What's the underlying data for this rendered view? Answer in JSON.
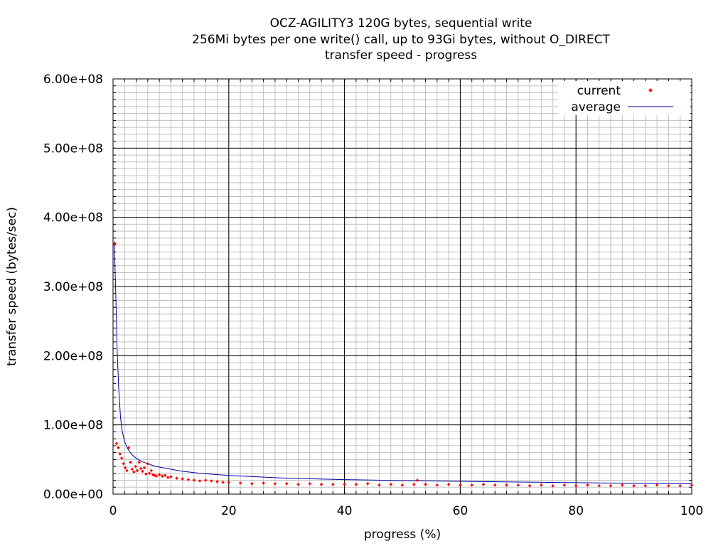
{
  "chart_data": {
    "type": "scatter",
    "title_lines": [
      "OCZ-AGILITY3 120G bytes, sequential write",
      "256Mi bytes per one write() call, up to 93Gi bytes, without O_DIRECT",
      "transfer speed - progress"
    ],
    "xlabel": "progress (%)",
    "ylabel": "transfer speed (bytes/sec)",
    "xlim": [
      0,
      100
    ],
    "ylim": [
      0,
      600000000
    ],
    "x_ticks": [
      0,
      20,
      40,
      60,
      80,
      100
    ],
    "x_tick_labels": [
      "0",
      "20",
      "40",
      "60",
      "80",
      "100"
    ],
    "y_ticks": [
      0,
      100000000,
      200000000,
      300000000,
      400000000,
      500000000,
      600000000
    ],
    "y_tick_labels": [
      "0.00e+00",
      "1.00e+08",
      "2.00e+08",
      "3.00e+08",
      "4.00e+08",
      "5.00e+08",
      "6.00e+08"
    ],
    "grid": true,
    "legend_position": "top-right",
    "series": [
      {
        "name": "current",
        "style": "points",
        "color": "#ff0000",
        "x": [
          0.3,
          0.6,
          0.9,
          1.2,
          1.5,
          1.8,
          2.1,
          2.4,
          2.7,
          3.0,
          3.3,
          3.6,
          3.9,
          4.2,
          4.5,
          4.8,
          5.1,
          5.4,
          5.7,
          6.0,
          6.3,
          6.6,
          6.9,
          7.2,
          7.5,
          8.0,
          8.5,
          9.0,
          9.5,
          10.0,
          11.0,
          12.0,
          13.0,
          14.0,
          15.0,
          16.0,
          17.0,
          18.0,
          19.0,
          20.0,
          22.0,
          24.0,
          26.0,
          28.0,
          30.0,
          32.0,
          34.0,
          36.0,
          38.0,
          40.0,
          42.0,
          44.0,
          46.0,
          48.0,
          50.0,
          52.0,
          52.6,
          54.0,
          56.0,
          58.0,
          60.0,
          62.0,
          64.0,
          66.0,
          68.0,
          70.0,
          72.0,
          74.0,
          76.0,
          78.0,
          80.0,
          82.0,
          84.0,
          86.0,
          88.0,
          90.0,
          92.0,
          94.0,
          96.0,
          98.0,
          100.0
        ],
        "values": [
          362000000,
          73000000,
          67000000,
          58000000,
          52000000,
          44000000,
          38000000,
          34000000,
          67000000,
          46000000,
          36000000,
          32000000,
          40000000,
          34000000,
          46000000,
          37000000,
          33000000,
          38000000,
          29000000,
          44000000,
          30000000,
          34000000,
          28000000,
          27000000,
          26000000,
          28000000,
          26000000,
          27000000,
          24000000,
          25000000,
          23000000,
          22000000,
          21000000,
          20000000,
          19000000,
          20000000,
          19000000,
          18000000,
          17000000,
          17000000,
          16000000,
          15000000,
          16000000,
          15000000,
          15000000,
          14000000,
          15000000,
          14000000,
          14000000,
          14000000,
          14000000,
          15000000,
          13000000,
          14000000,
          13000000,
          14000000,
          20000000,
          14000000,
          13000000,
          14000000,
          13000000,
          13000000,
          14000000,
          13000000,
          13000000,
          13000000,
          12000000,
          13000000,
          12000000,
          13000000,
          12000000,
          13000000,
          12000000,
          12000000,
          13000000,
          12000000,
          12000000,
          13000000,
          12000000,
          12000000,
          13000000
        ]
      },
      {
        "name": "average",
        "style": "line",
        "color": "#0000a0",
        "x": [
          0.2,
          0.3,
          0.5,
          0.7,
          1.0,
          1.3,
          1.6,
          2.0,
          2.5,
          3.0,
          3.5,
          4.0,
          5.0,
          6.0,
          7.0,
          8.0,
          10.0,
          12.0,
          15.0,
          20.0,
          25.0,
          30.0,
          40.0,
          50.0,
          60.0,
          70.0,
          80.0,
          90.0,
          100.0
        ],
        "values": [
          365000000,
          340000000,
          280000000,
          210000000,
          150000000,
          110000000,
          90000000,
          76000000,
          66000000,
          60000000,
          55000000,
          52000000,
          47000000,
          44000000,
          41000000,
          39000000,
          36000000,
          33000000,
          30000000,
          27000000,
          25000000,
          23000000,
          21000000,
          19500000,
          18500000,
          17500000,
          16500000,
          15500000,
          15000000
        ]
      }
    ]
  }
}
